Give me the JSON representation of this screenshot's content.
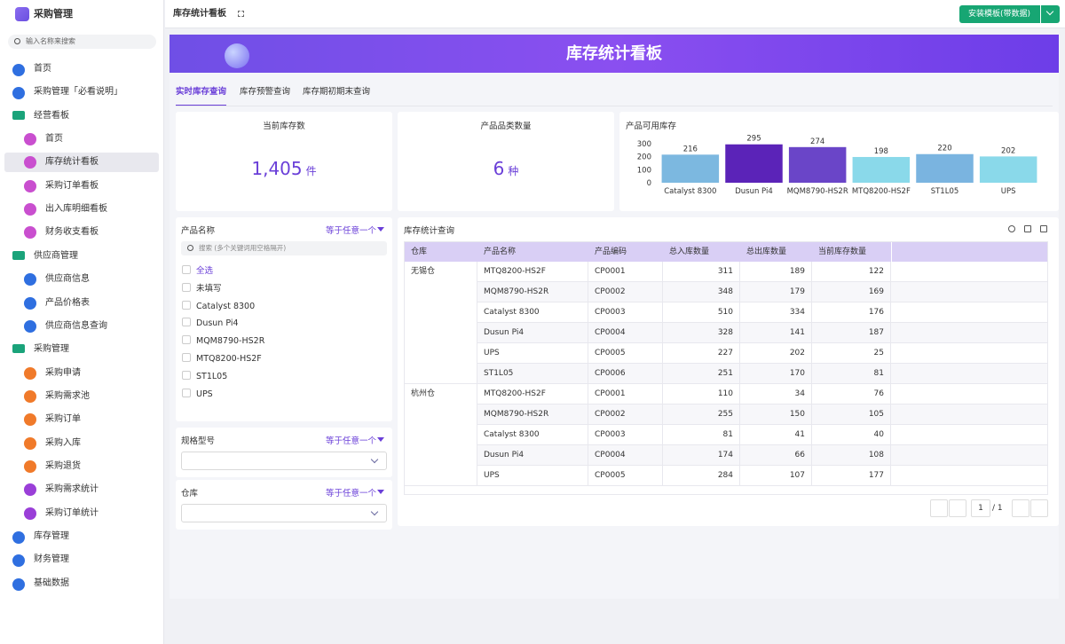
{
  "sidebar": {
    "app_title": "采购管理",
    "search_placeholder": "输入名称来搜索",
    "menu": [
      {
        "label": "首页"
      },
      {
        "label": "采购管理「必看说明」"
      },
      {
        "label": "经营看板",
        "children": [
          {
            "label": "首页"
          },
          {
            "label": "库存统计看板",
            "selected": true
          },
          {
            "label": "采购订单看板"
          },
          {
            "label": "出入库明细看板"
          },
          {
            "label": "财务收支看板"
          }
        ]
      },
      {
        "label": "供应商管理",
        "children": [
          {
            "label": "供应商信息"
          },
          {
            "label": "产品价格表"
          },
          {
            "label": "供应商信息查询"
          }
        ]
      },
      {
        "label": "采购管理",
        "children": [
          {
            "label": "采购申请"
          },
          {
            "label": "采购需求池"
          },
          {
            "label": "采购订单"
          },
          {
            "label": "采购入库"
          },
          {
            "label": "采购退货"
          },
          {
            "label": "采购需求统计"
          },
          {
            "label": "采购订单统计"
          }
        ]
      },
      {
        "label": "库存管理"
      },
      {
        "label": "财务管理"
      },
      {
        "label": "基础数据"
      }
    ]
  },
  "header": {
    "tab_title": "库存统计看板",
    "install_button": "安装模板(带数据)"
  },
  "banner": {
    "title": "库存统计看板"
  },
  "tabs": {
    "items": [
      "实时库存查询",
      "库存预警查询",
      "库存期初期末查询"
    ],
    "active": 0
  },
  "kpis": [
    {
      "label": "当前库存数",
      "value": "1,405",
      "unit": "件"
    },
    {
      "label": "产品品类数量",
      "value": "6",
      "unit": "种"
    }
  ],
  "chart_data": {
    "type": "bar",
    "title": "产品可用库存",
    "categories": [
      "Catalyst 8300",
      "Dusun Pi4",
      "MQM8790-HS2R",
      "MTQ8200-HS2F",
      "ST1L05",
      "UPS"
    ],
    "values": [
      216,
      295,
      274,
      198,
      220,
      202
    ],
    "colors": [
      "#7cb8e0",
      "#5b23b8",
      "#6a45c8",
      "#8ad9ea",
      "#7ab4e0",
      "#8ad9ea"
    ],
    "ylim": [
      0,
      300
    ],
    "yticks": [
      0,
      100,
      200,
      300
    ]
  },
  "filters": [
    {
      "title": "产品名称",
      "mode": "等于任意一个",
      "search_placeholder": "搜索 (多个关键词用空格隔开)",
      "options": [
        "全选",
        "未填写",
        "Catalyst 8300",
        "Dusun Pi4",
        "MQM8790-HS2R",
        "MTQ8200-HS2F",
        "ST1L05",
        "UPS"
      ]
    },
    {
      "title": "规格型号",
      "mode": "等于任意一个"
    },
    {
      "title": "仓库",
      "mode": "等于任意一个"
    }
  ],
  "table": {
    "title": "库存统计查询",
    "columns": [
      "仓库",
      "产品名称",
      "产品编码",
      "总入库数量",
      "总出库数量",
      "当前库存数量"
    ],
    "groups": [
      {
        "warehouse": "无锡仓",
        "rows": [
          [
            "MTQ8200-HS2F",
            "CP0001",
            311,
            189,
            122
          ],
          [
            "MQM8790-HS2R",
            "CP0002",
            348,
            179,
            169
          ],
          [
            "Catalyst 8300",
            "CP0003",
            510,
            334,
            176
          ],
          [
            "Dusun Pi4",
            "CP0004",
            328,
            141,
            187
          ],
          [
            "UPS",
            "CP0005",
            227,
            202,
            25
          ],
          [
            "ST1L05",
            "CP0006",
            251,
            170,
            81
          ]
        ]
      },
      {
        "warehouse": "杭州仓",
        "rows": [
          [
            "MTQ8200-HS2F",
            "CP0001",
            110,
            34,
            76
          ],
          [
            "MQM8790-HS2R",
            "CP0002",
            255,
            150,
            105
          ],
          [
            "Catalyst 8300",
            "CP0003",
            81,
            41,
            40
          ],
          [
            "Dusun Pi4",
            "CP0004",
            174,
            66,
            108
          ],
          [
            "UPS",
            "CP0005",
            284,
            107,
            177
          ]
        ]
      }
    ]
  },
  "pagination": {
    "page": "1",
    "total": "/ 1"
  }
}
